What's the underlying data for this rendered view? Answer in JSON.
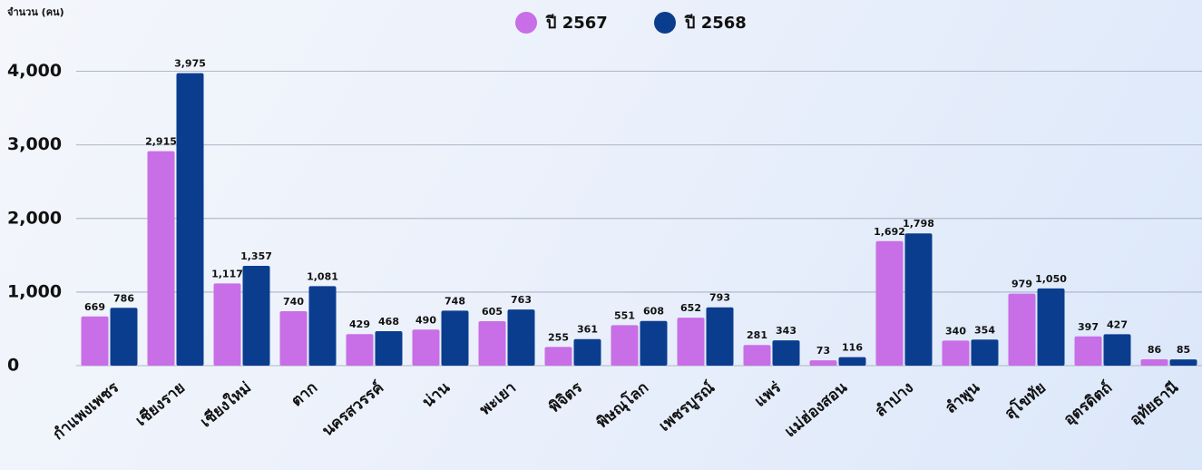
{
  "chart_data": {
    "type": "bar",
    "y_label": "จำนวน (คน)",
    "categories": [
      "กำแพงเพชร",
      "เชียงราย",
      "เชียงใหม่",
      "ตาก",
      "นครสวรรค์",
      "น่าน",
      "พะเยา",
      "พิจิตร",
      "พิษณุโลก",
      "เพชรบูรณ์",
      "แพร่",
      "แม่ฮ่องสอน",
      "ลำปาง",
      "ลำพูน",
      "สุโขทัย",
      "อุตรดิตถ์",
      "อุทัยธานี"
    ],
    "series": [
      {
        "name": "ปี 2567",
        "color": "#c86ee6",
        "values": [
          669,
          2915,
          1117,
          740,
          429,
          490,
          605,
          255,
          551,
          652,
          281,
          73,
          1692,
          340,
          979,
          397,
          86
        ],
        "value_labels": [
          "669",
          "2,915",
          "1,117",
          "740",
          "429",
          "490",
          "605",
          "255",
          "551",
          "652",
          "281",
          "73",
          "1,692",
          "340",
          "979",
          "397",
          "86"
        ]
      },
      {
        "name": "ปี 2568",
        "color": "#0b3d8f",
        "values": [
          786,
          3975,
          1357,
          1081,
          468,
          748,
          763,
          361,
          608,
          793,
          343,
          116,
          1798,
          354,
          1050,
          427,
          85
        ],
        "value_labels": [
          "786",
          "3,975",
          "1,357",
          "1,081",
          "468",
          "748",
          "763",
          "361",
          "608",
          "793",
          "343",
          "116",
          "1,798",
          "354",
          "1,050",
          "427",
          "85"
        ]
      }
    ],
    "ylim": [
      0,
      4600
    ],
    "yticks": [
      0,
      {
        "value": 1000,
        "label": "1,000"
      },
      {
        "value": 2000,
        "label": "2,000"
      },
      {
        "value": 3000,
        "label": "3,000"
      },
      {
        "value": 4000,
        "label": "4,000"
      }
    ],
    "grid": true,
    "legend": "top"
  }
}
